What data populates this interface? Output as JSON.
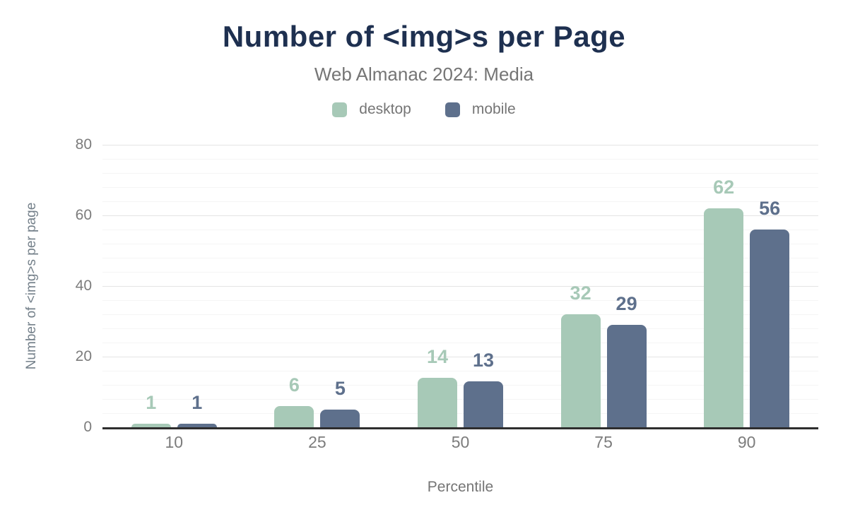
{
  "chart_data": {
    "type": "bar",
    "title": "Number of <img>s per Page",
    "subtitle": "Web Almanac 2024: Media",
    "xlabel": "Percentile",
    "ylabel": "Number of <img>s per page",
    "categories": [
      "10",
      "25",
      "50",
      "75",
      "90"
    ],
    "series": [
      {
        "name": "desktop",
        "color": "#a7c9b7",
        "values": [
          1,
          6,
          14,
          32,
          62
        ]
      },
      {
        "name": "mobile",
        "color": "#5e708c",
        "values": [
          1,
          5,
          13,
          29,
          56
        ]
      }
    ],
    "ylim": [
      0,
      80
    ],
    "y_ticks": [
      0,
      20,
      40,
      60,
      80
    ],
    "grid": true,
    "legend_position": "top",
    "data_labels": true
  },
  "colors": {
    "title_text": "#1e3050",
    "muted_text": "#757575",
    "tick_text": "#7c7c7c",
    "axis_line": "#2e2e2e",
    "grid_major": "#e4e4e4",
    "grid_minor": "#f5f5f5",
    "background": "#ffffff"
  }
}
